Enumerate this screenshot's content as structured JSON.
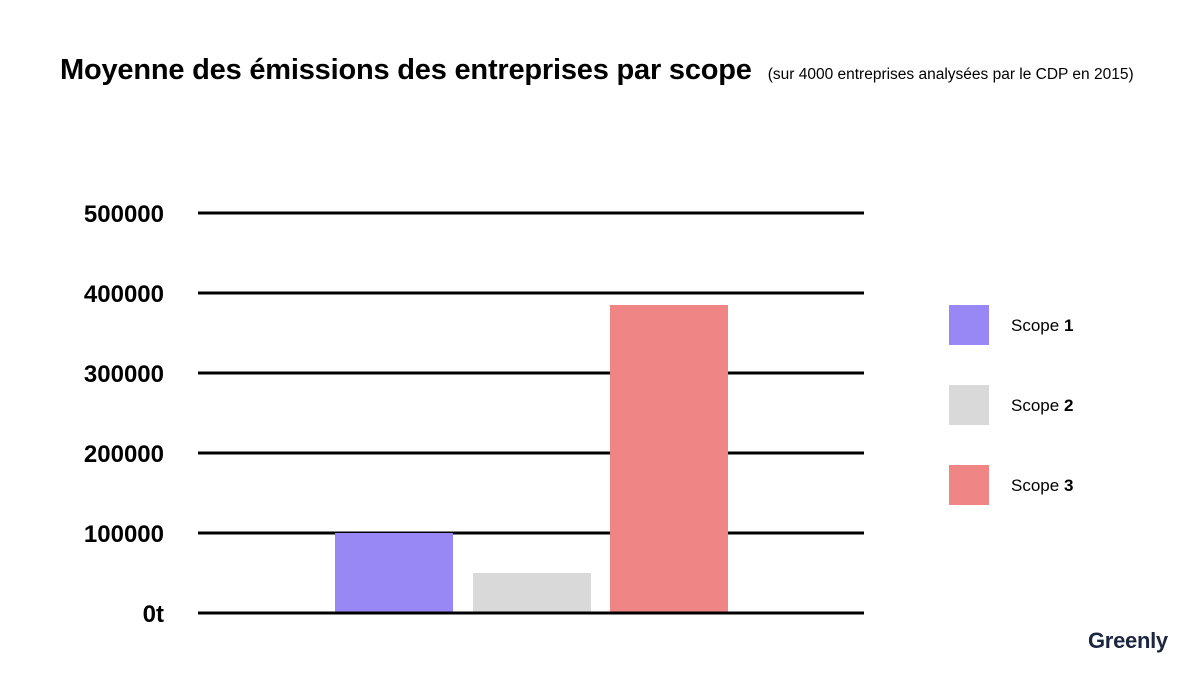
{
  "chart_data": {
    "type": "bar",
    "title": "Moyenne des émissions des entreprises par scope",
    "subtitle": "(sur 4000 entreprises analysées par le CDP en 2015)",
    "categories": [
      "Scope 1",
      "Scope 2",
      "Scope 3"
    ],
    "values": [
      100000,
      50000,
      385000
    ],
    "colors": [
      "#9788f6",
      "#d9d9d9",
      "#ef8584"
    ],
    "yticks": [
      "0t",
      "100000",
      "200000",
      "300000",
      "400000",
      "500000"
    ],
    "ylim": [
      0,
      500000
    ],
    "grid": true,
    "legend_position": "right",
    "legend": [
      {
        "label": "Scope",
        "number": "1",
        "color": "#9788f6"
      },
      {
        "label": "Scope",
        "number": "2",
        "color": "#d9d9d9"
      },
      {
        "label": "Scope",
        "number": "3",
        "color": "#ef8584"
      }
    ]
  },
  "brand": "Greenly"
}
